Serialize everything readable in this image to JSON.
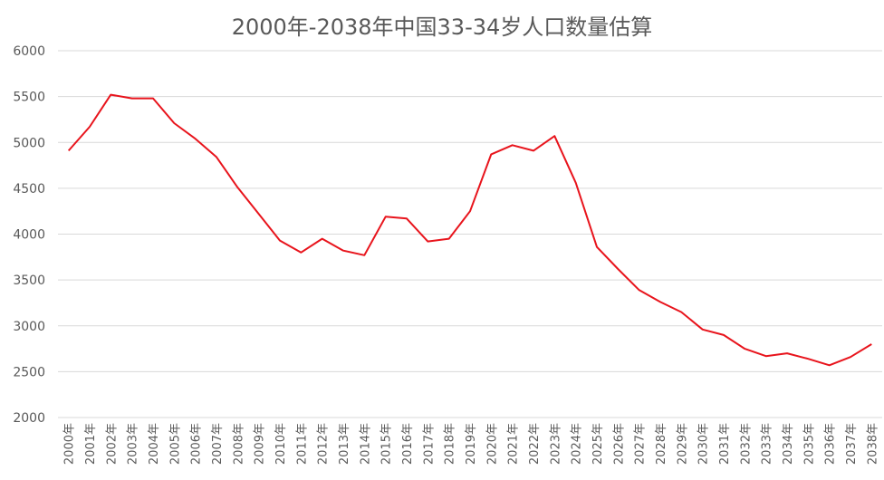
{
  "chart_data": {
    "type": "line",
    "title": "2000年-2038年中国33-34岁人口数量估算",
    "xlabel": "",
    "ylabel": "",
    "ylim": [
      2000,
      6000
    ],
    "yticks": [
      2000,
      2500,
      3000,
      3500,
      4000,
      4500,
      5000,
      5500,
      6000
    ],
    "grid": true,
    "legend": "none",
    "categories": [
      "2000年",
      "2001年",
      "2002年",
      "2003年",
      "2004年",
      "2005年",
      "2006年",
      "2007年",
      "2008年",
      "2009年",
      "2010年",
      "2011年",
      "2012年",
      "2013年",
      "2014年",
      "2015年",
      "2016年",
      "2017年",
      "2018年",
      "2019年",
      "2020年",
      "2021年",
      "2022年",
      "2023年",
      "2024年",
      "2025年",
      "2026年",
      "2027年",
      "2028年",
      "2029年",
      "2030年",
      "2031年",
      "2032年",
      "2033年",
      "2034年",
      "2035年",
      "2036年",
      "2037年",
      "2038年"
    ],
    "series": [
      {
        "color": "#e8141c",
        "values": [
          4910,
          5170,
          5520,
          5480,
          5480,
          5210,
          5040,
          4840,
          4510,
          4220,
          3930,
          3800,
          3950,
          3820,
          3770,
          4190,
          4170,
          3920,
          3950,
          4250,
          4870,
          4970,
          4910,
          5070,
          4560,
          3860,
          3620,
          3390,
          3260,
          3150,
          2960,
          2900,
          2750,
          2670,
          2700,
          2640,
          2570,
          2660,
          2800
        ]
      }
    ]
  }
}
